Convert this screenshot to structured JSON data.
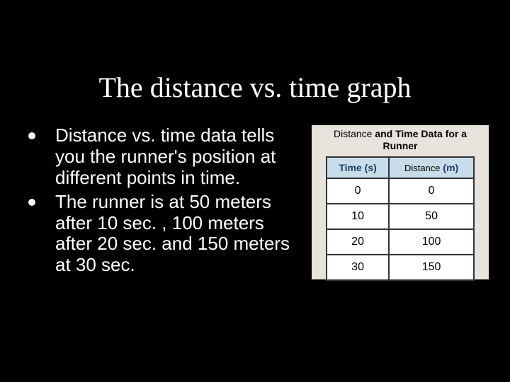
{
  "slide": {
    "title": "The distance vs. time graph",
    "bullets": [
      "Distance vs. time data tells you the runner's position at different points in time.",
      "The runner is at 50 meters after 10 sec. , 100 meters after 20 sec. and 150 meters at 30 sec."
    ]
  },
  "table": {
    "caption_prefix": "Distance",
    "caption_rest": " and Time Data for a Runner",
    "header1": "Time (s)",
    "header2_overlay": "Distance",
    "header2_unit": " (m)",
    "columns": [
      "Time (s)",
      "Distance (m)"
    ],
    "rows": [
      [
        "0",
        "0"
      ],
      [
        "10",
        "50"
      ],
      [
        "20",
        "100"
      ],
      [
        "30",
        "150"
      ]
    ]
  },
  "colors": {
    "background": "#000000",
    "text": "#ffffff",
    "panel_bg": "#e8e3dc",
    "table_header_bg": "#c9dce9",
    "table_header_fg": "#1a3f66",
    "table_border": "#333333",
    "cell_bg": "#ffffff"
  }
}
